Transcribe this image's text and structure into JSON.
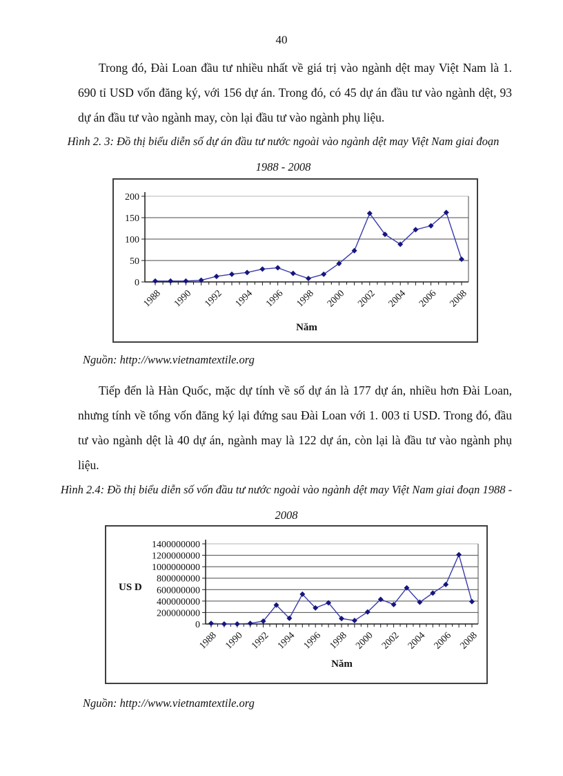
{
  "page": {
    "number": "40"
  },
  "paragraphs": {
    "p1": "Trong đó, Đài Loan đầu tư nhiều nhất về giá trị vào ngành dệt may Việt Nam là 1. 690 tỉ USD vốn đăng ký, với 156 dự án. Trong đó, có 45 dự án đầu tư vào ngành dệt, 93 dự án đầu tư vào ngành may, còn lại đầu tư vào ngành phụ liệu.",
    "p2": "Tiếp đến là Hàn Quốc, mặc dự tính về số dự án là 177 dự án, nhiều hơn Đài Loan, nhưng tính về tổng vốn đăng ký lại đứng sau Đài Loan với 1. 003 tỉ USD. Trong đó, đầu tư vào ngành dệt là 40 dự án, ngành may là 122 dự án, còn lại là đầu tư vào ngành phụ liệu."
  },
  "figure1": {
    "caption": "Hình 2. 3: Đồ thị biểu diễn số dự án đầu tư nước ngoài vào ngành dệt may Việt Nam giai đoạn 1988 - 2008",
    "source": "Nguồn: http://www.vietnamtextile.org"
  },
  "figure2": {
    "caption": "Hình 2.4: Đồ thị biểu diễn số vốn đầu tư nước ngoài vào ngành dệt may Việt Nam giai đoạn 1988 - 2008",
    "source": "Nguồn: http://www.vietnamtextile.org"
  },
  "chart_data": [
    {
      "type": "line",
      "title": "Hình 2. 3: Đồ thị biểu diễn số dự án đầu tư nước ngoài vào ngành dệt may Việt Nam giai đoạn 1988 - 2008",
      "x": [
        1988,
        1989,
        1990,
        1991,
        1992,
        1993,
        1994,
        1995,
        1996,
        1997,
        1998,
        1999,
        2000,
        2001,
        2002,
        2003,
        2004,
        2005,
        2006,
        2007,
        2008
      ],
      "values": [
        2,
        2,
        2,
        4,
        13,
        18,
        22,
        30,
        33,
        20,
        8,
        18,
        43,
        73,
        160,
        111,
        88,
        122,
        131,
        162,
        53
      ],
      "xlabel": "Năm",
      "ylabel": "",
      "ylim": [
        0,
        200
      ],
      "yticks": [
        0,
        50,
        100,
        150,
        200
      ],
      "xtick_labels": [
        "1988",
        "1990",
        "1992",
        "1994",
        "1996",
        "1998",
        "2000",
        "2002",
        "2004",
        "2006",
        "2008"
      ],
      "grid": true,
      "legend": "none",
      "line_color": "#3939ac",
      "marker": "diamond",
      "marker_color": "#16167e"
    },
    {
      "type": "line",
      "title": "Hình 2.4: Đồ thị biểu diễn số vốn đầu tư nước ngoài vào ngành dệt may Việt Nam giai đoạn 1988 - 2008",
      "x": [
        1988,
        1989,
        1990,
        1991,
        1992,
        1993,
        1994,
        1995,
        1996,
        1997,
        1998,
        1999,
        2000,
        2001,
        2002,
        2003,
        2004,
        2005,
        2006,
        2007,
        2008
      ],
      "values": [
        10000000,
        0,
        0,
        10000000,
        50000000,
        330000000,
        100000000,
        520000000,
        280000000,
        370000000,
        95000000,
        60000000,
        210000000,
        430000000,
        340000000,
        630000000,
        380000000,
        540000000,
        690000000,
        1210000000,
        390000000
      ],
      "xlabel": "Năm",
      "ylabel": "US D",
      "ylim": [
        0,
        1400000000
      ],
      "yticks": [
        0,
        200000000,
        400000000,
        600000000,
        800000000,
        1000000000,
        1200000000,
        1400000000
      ],
      "xtick_labels": [
        "1988",
        "1990",
        "1992",
        "1994",
        "1996",
        "1998",
        "2000",
        "2002",
        "2004",
        "2006",
        "2008"
      ],
      "grid": true,
      "legend": "none",
      "line_color": "#3939ac",
      "marker": "diamond",
      "marker_color": "#16167e"
    }
  ]
}
